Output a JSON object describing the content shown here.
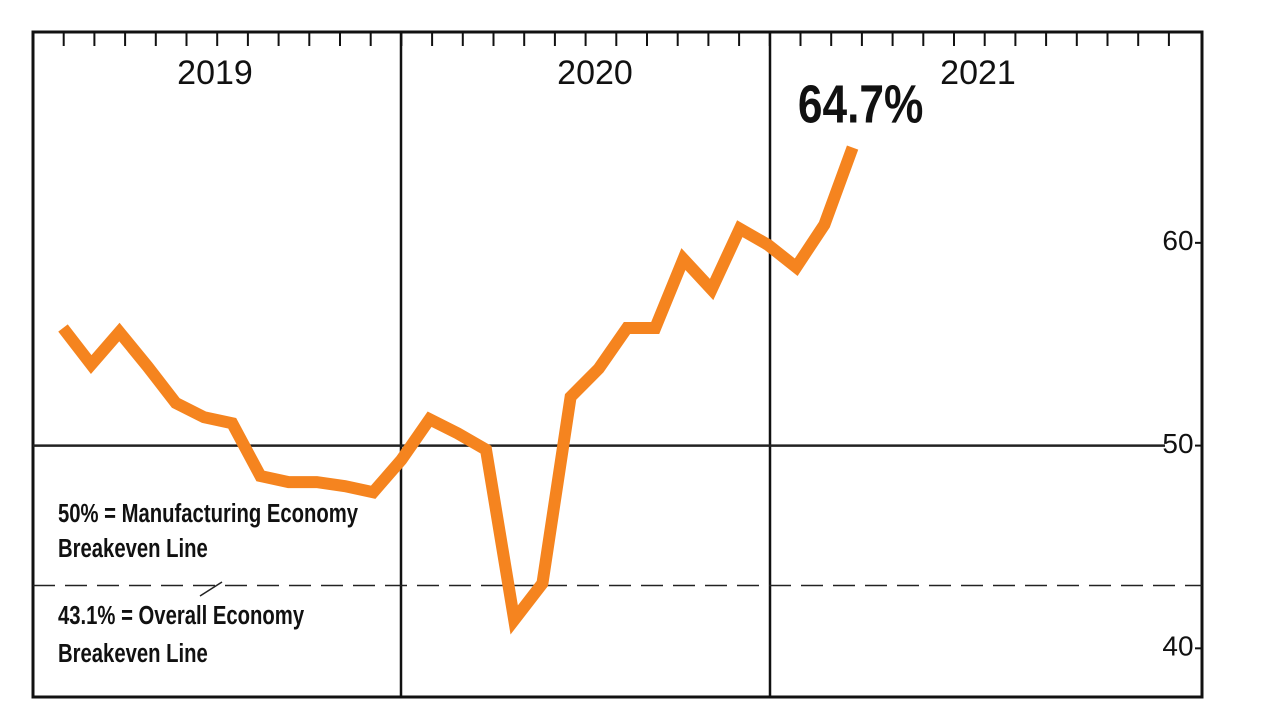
{
  "chart_data": {
    "type": "line",
    "year_labels": [
      "2019",
      "2020",
      "2021"
    ],
    "categories": [
      null,
      null,
      null,
      null,
      null,
      null,
      null,
      null,
      null,
      null,
      null,
      null,
      null,
      null,
      null,
      null,
      null,
      null,
      null,
      null,
      null,
      null,
      null,
      null,
      null,
      null,
      null,
      null,
      null
    ],
    "series": [
      {
        "color": "#f5841f",
        "values": [
          55.8,
          54.0,
          55.6,
          53.9,
          52.1,
          51.4,
          51.1,
          48.5,
          48.2,
          48.2,
          48.0,
          47.7,
          49.3,
          51.3,
          50.6,
          49.8,
          41.4,
          43.2,
          52.4,
          53.8,
          55.8,
          55.8,
          59.2,
          57.7,
          60.7,
          59.9,
          58.8,
          60.9,
          64.7
        ],
        "value_label_last": "64.7%"
      }
    ],
    "ylim": [
      37.6,
      70.4
    ],
    "yticks": [
      40,
      50,
      60
    ],
    "reference_lines": [
      {
        "value": 50,
        "style": "solid",
        "label": [
          "50% = Manufacturing Economy",
          "Breakeven Line"
        ]
      },
      {
        "value": 43.1,
        "style": "dashed",
        "label": [
          "43.1% = Overall Economy",
          "Breakeven Line"
        ]
      }
    ]
  }
}
